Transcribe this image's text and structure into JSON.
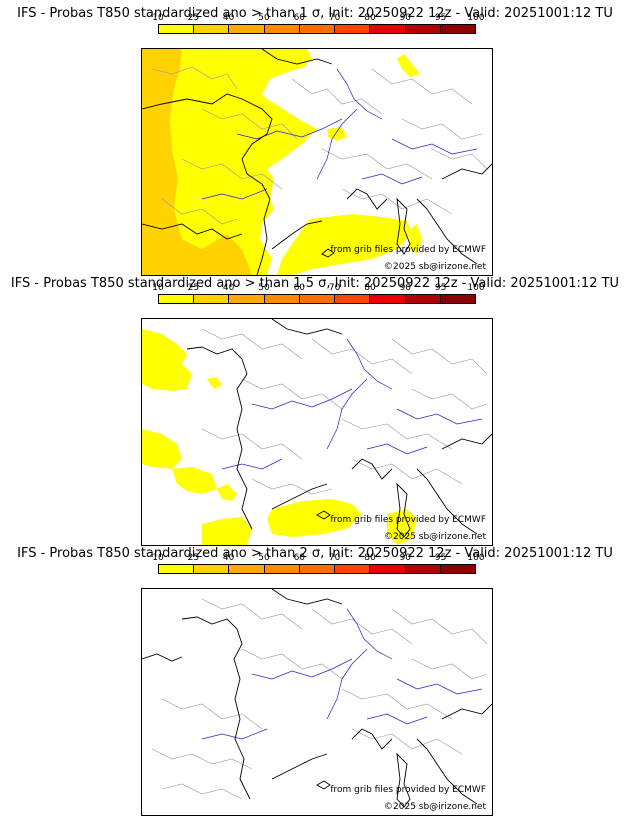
{
  "colorbar": {
    "ticks": [
      "10",
      "25",
      "40",
      "50",
      "60",
      "70",
      "80",
      "90",
      "95",
      "100"
    ],
    "colors": [
      "#ffff00",
      "#ffd200",
      "#ffaa00",
      "#ff8c00",
      "#ff6e00",
      "#ff4600",
      "#e60000",
      "#b40000",
      "#8c0000"
    ]
  },
  "panels": [
    {
      "title": "IFS - Probas T850  standardized ano > than 1 σ, Init: 20250922 12z - Valid: 20251001:12 TU"
    },
    {
      "title": "IFS - Probas T850  standardized ano > than 1.5 σ, Init: 20250922 12z - Valid: 20251001:12 TU"
    },
    {
      "title": "IFS - Probas T850  standardized ano > than 2 σ, Init: 20250922 12z - Valid: 20251001:12 TU"
    }
  ],
  "credits": {
    "source": "from grib files provided by ECMWF",
    "copyright": "©2025 sb@irizone.net"
  },
  "map_colors": {
    "coast": "#000000",
    "rivers": "#2222cc",
    "borders": "#999999",
    "prob_yellow": "#ffff00",
    "prob_gold": "#ffd200"
  }
}
